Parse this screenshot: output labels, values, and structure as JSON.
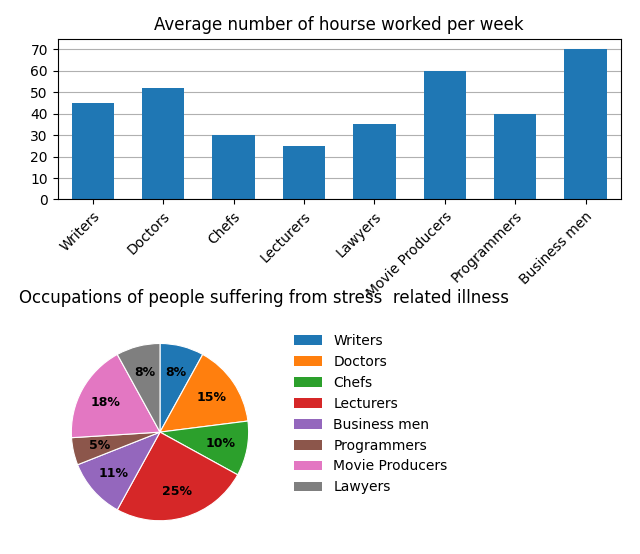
{
  "chart_data": [
    {
      "type": "bar",
      "title": "Average number of hourse worked per week",
      "categories": [
        "Writers",
        "Doctors",
        "Chefs",
        "Lecturers",
        "Lawyers",
        "Movie Producers",
        "Programmers",
        "Business men"
      ],
      "values": [
        45,
        52,
        30,
        25,
        35,
        60,
        40,
        70
      ],
      "ylim": [
        0,
        75
      ],
      "yticks": [
        0,
        10,
        20,
        30,
        40,
        50,
        60,
        70
      ],
      "grid": true
    },
    {
      "type": "pie",
      "title": "Occupations of people suffering from stress  related illness",
      "categories": [
        "Writers",
        "Doctors",
        "Chefs",
        "Lecturers",
        "Business men",
        "Programmers",
        "Movie Producers",
        "Lawyers"
      ],
      "values": [
        8,
        15,
        10,
        25,
        11,
        5,
        18,
        8
      ],
      "value_labels": [
        "8%",
        "15%",
        "10%",
        "25%",
        "11%",
        "5%",
        "18%",
        "8%"
      ],
      "data_labels": true,
      "legend": "upper left"
    }
  ]
}
